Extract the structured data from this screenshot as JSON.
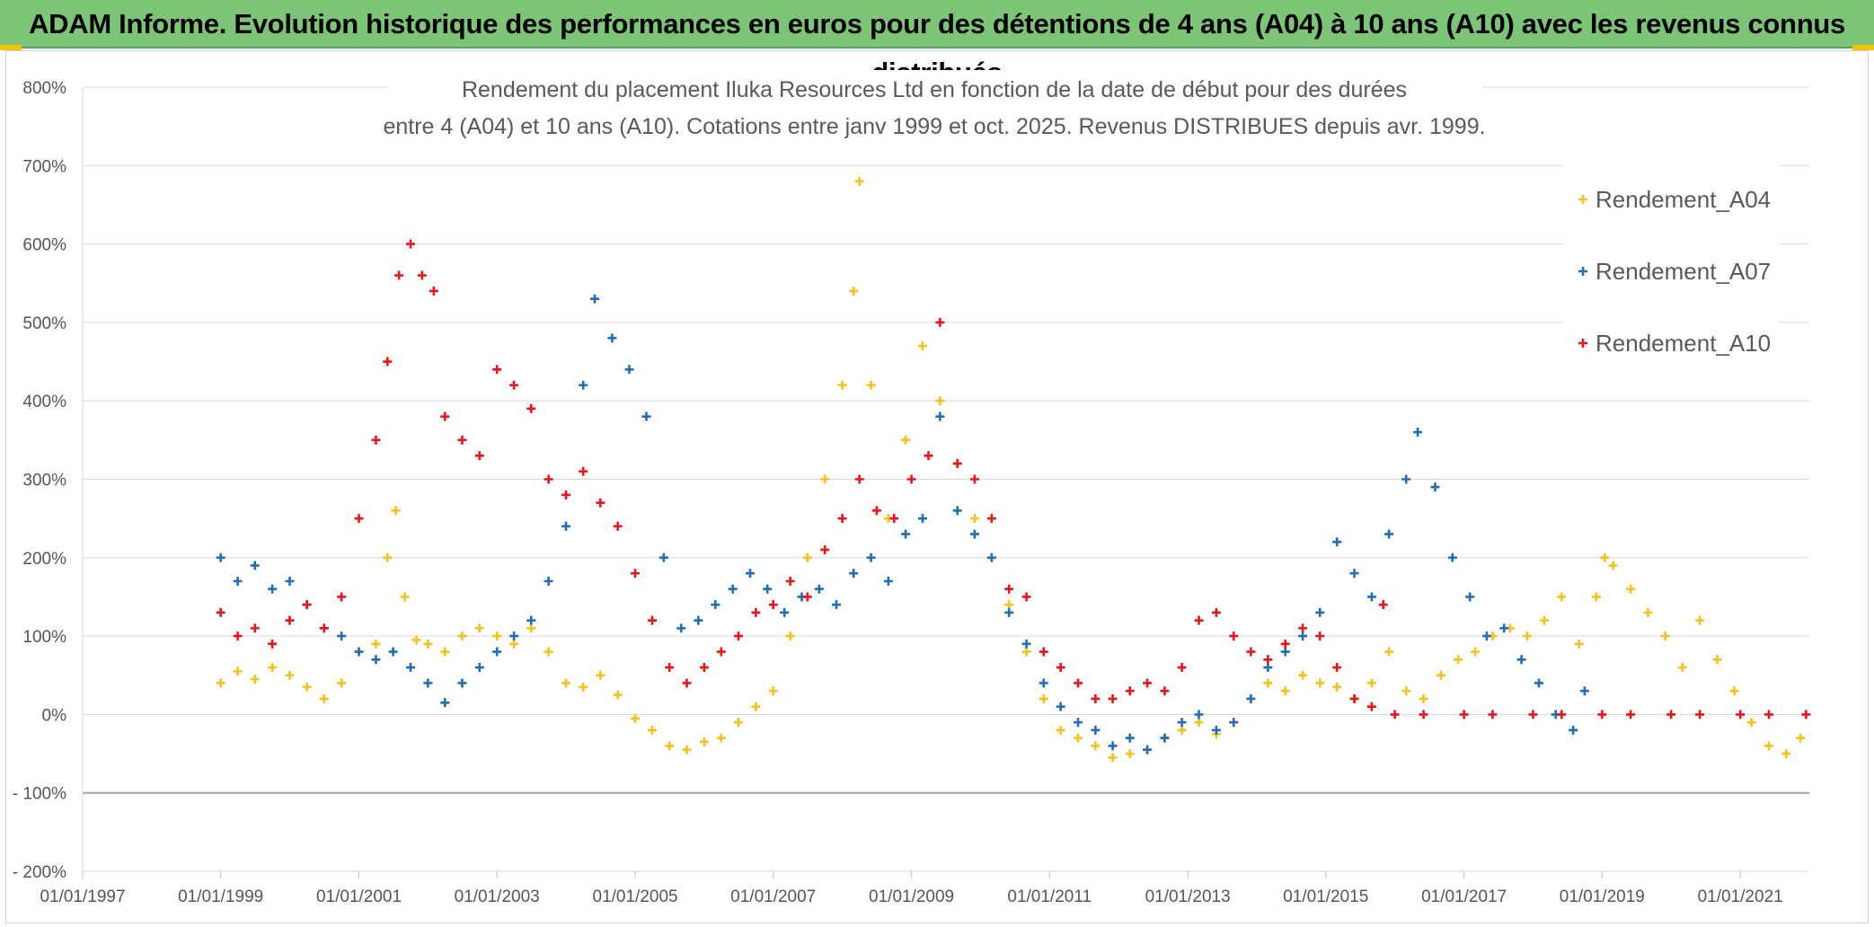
{
  "banner": {
    "title": "ADAM Informe. Evolution historique des performances en euros pour des détentions de 4 ans (A04) à 10 ans (A10) avec les revenus connus distribués"
  },
  "chart_data": {
    "type": "scatter",
    "title_line1": "Rendement du placement Iluka Resources Ltd en fonction de la date de début pour des durées",
    "title_line2": "entre 4 (A04) et 10 ans (A10). Cotations entre janv 1999 et oct. 2025. Revenus DISTRIBUES depuis avr. 1999.",
    "xlabel": "",
    "ylabel": "",
    "x_axis": {
      "min": "1997-01-01",
      "max": "2022-01-01",
      "tick_labels": [
        "01/01/1997",
        "01/01/1999",
        "01/01/2001",
        "01/01/2003",
        "01/01/2005",
        "01/01/2007",
        "01/01/2009",
        "01/01/2011",
        "01/01/2013",
        "01/01/2015",
        "01/01/2017",
        "01/01/2019",
        "01/01/2021"
      ]
    },
    "y_axis": {
      "min": -200,
      "max": 800,
      "unit": "%",
      "tick_labels": [
        "800%",
        "700%",
        "600%",
        "500%",
        "400%",
        "300%",
        "200%",
        "100%",
        "0%",
        "- 100%",
        "- 200%"
      ]
    },
    "grid": "horizontal",
    "legend_position": "top-right",
    "series": [
      {
        "name": "Rendement_A04",
        "color": "#f5c11d",
        "points": [
          [
            "1999-01-01",
            40
          ],
          [
            "1999-04-01",
            55
          ],
          [
            "1999-07-01",
            45
          ],
          [
            "1999-10-01",
            60
          ],
          [
            "2000-01-01",
            50
          ],
          [
            "2000-04-01",
            35
          ],
          [
            "2000-07-01",
            20
          ],
          [
            "2000-10-01",
            40
          ],
          [
            "2001-01-01",
            80
          ],
          [
            "2001-04-01",
            90
          ],
          [
            "2001-06-01",
            200
          ],
          [
            "2001-07-15",
            260
          ],
          [
            "2001-09-01",
            150
          ],
          [
            "2001-11-01",
            95
          ],
          [
            "2002-01-01",
            90
          ],
          [
            "2002-04-01",
            80
          ],
          [
            "2002-07-01",
            100
          ],
          [
            "2002-10-01",
            110
          ],
          [
            "2003-01-01",
            100
          ],
          [
            "2003-04-01",
            90
          ],
          [
            "2003-07-01",
            110
          ],
          [
            "2003-10-01",
            80
          ],
          [
            "2004-01-01",
            40
          ],
          [
            "2004-04-01",
            35
          ],
          [
            "2004-07-01",
            50
          ],
          [
            "2004-10-01",
            25
          ],
          [
            "2005-01-01",
            -5
          ],
          [
            "2005-04-01",
            -20
          ],
          [
            "2005-07-01",
            -40
          ],
          [
            "2005-10-01",
            -45
          ],
          [
            "2006-01-01",
            -35
          ],
          [
            "2006-04-01",
            -30
          ],
          [
            "2006-07-01",
            -10
          ],
          [
            "2006-10-01",
            10
          ],
          [
            "2007-01-01",
            30
          ],
          [
            "2007-04-01",
            100
          ],
          [
            "2007-07-01",
            200
          ],
          [
            "2007-10-01",
            300
          ],
          [
            "2008-01-01",
            420
          ],
          [
            "2008-03-01",
            540
          ],
          [
            "2008-04-01",
            680
          ],
          [
            "2008-06-01",
            420
          ],
          [
            "2008-09-01",
            250
          ],
          [
            "2008-12-01",
            350
          ],
          [
            "2009-03-01",
            470
          ],
          [
            "2009-06-01",
            400
          ],
          [
            "2009-09-01",
            320
          ],
          [
            "2009-12-01",
            250
          ],
          [
            "2010-03-01",
            200
          ],
          [
            "2010-06-01",
            140
          ],
          [
            "2010-09-01",
            80
          ],
          [
            "2010-12-01",
            20
          ],
          [
            "2011-03-01",
            -20
          ],
          [
            "2011-06-01",
            -30
          ],
          [
            "2011-09-01",
            -40
          ],
          [
            "2011-12-01",
            -55
          ],
          [
            "2012-03-01",
            -50
          ],
          [
            "2012-06-01",
            -45
          ],
          [
            "2012-09-01",
            -30
          ],
          [
            "2012-12-01",
            -20
          ],
          [
            "2013-03-01",
            -10
          ],
          [
            "2013-06-01",
            -25
          ],
          [
            "2013-09-01",
            -10
          ],
          [
            "2013-12-01",
            20
          ],
          [
            "2014-03-01",
            40
          ],
          [
            "2014-06-01",
            30
          ],
          [
            "2014-09-01",
            50
          ],
          [
            "2014-12-01",
            40
          ],
          [
            "2015-03-01",
            35
          ],
          [
            "2015-06-01",
            20
          ],
          [
            "2015-09-01",
            40
          ],
          [
            "2015-12-01",
            80
          ],
          [
            "2016-03-01",
            30
          ],
          [
            "2016-06-01",
            20
          ],
          [
            "2016-09-01",
            50
          ],
          [
            "2016-12-01",
            70
          ],
          [
            "2017-03-01",
            80
          ],
          [
            "2017-06-01",
            100
          ],
          [
            "2017-09-01",
            110
          ],
          [
            "2017-12-01",
            100
          ],
          [
            "2018-03-01",
            120
          ],
          [
            "2018-06-01",
            150
          ],
          [
            "2018-09-01",
            90
          ],
          [
            "2018-12-01",
            150
          ],
          [
            "2019-01-15",
            200
          ],
          [
            "2019-03-01",
            190
          ],
          [
            "2019-06-01",
            160
          ],
          [
            "2019-09-01",
            130
          ],
          [
            "2019-12-01",
            100
          ],
          [
            "2020-03-01",
            60
          ],
          [
            "2020-06-01",
            120
          ],
          [
            "2020-09-01",
            70
          ],
          [
            "2020-12-01",
            30
          ],
          [
            "2021-03-01",
            -10
          ],
          [
            "2021-06-01",
            -40
          ],
          [
            "2021-09-01",
            -50
          ],
          [
            "2021-11-15",
            -30
          ]
        ]
      },
      {
        "name": "Rendement_A07",
        "color": "#1e6eb8",
        "points": [
          [
            "1999-01-01",
            200
          ],
          [
            "1999-04-01",
            170
          ],
          [
            "1999-07-01",
            190
          ],
          [
            "1999-10-01",
            160
          ],
          [
            "2000-01-01",
            170
          ],
          [
            "2000-04-01",
            140
          ],
          [
            "2000-07-01",
            110
          ],
          [
            "2000-10-01",
            100
          ],
          [
            "2001-01-01",
            80
          ],
          [
            "2001-04-01",
            70
          ],
          [
            "2001-07-01",
            80
          ],
          [
            "2001-10-01",
            60
          ],
          [
            "2002-01-01",
            40
          ],
          [
            "2002-04-01",
            15
          ],
          [
            "2002-07-01",
            40
          ],
          [
            "2002-10-01",
            60
          ],
          [
            "2003-01-01",
            80
          ],
          [
            "2003-04-01",
            100
          ],
          [
            "2003-07-01",
            120
          ],
          [
            "2003-10-01",
            170
          ],
          [
            "2004-01-01",
            240
          ],
          [
            "2004-04-01",
            420
          ],
          [
            "2004-06-01",
            530
          ],
          [
            "2004-09-01",
            480
          ],
          [
            "2004-12-01",
            440
          ],
          [
            "2005-03-01",
            380
          ],
          [
            "2005-06-01",
            200
          ],
          [
            "2005-09-01",
            110
          ],
          [
            "2005-12-01",
            120
          ],
          [
            "2006-03-01",
            140
          ],
          [
            "2006-06-01",
            160
          ],
          [
            "2006-09-01",
            180
          ],
          [
            "2006-12-01",
            160
          ],
          [
            "2007-03-01",
            130
          ],
          [
            "2007-06-01",
            150
          ],
          [
            "2007-09-01",
            160
          ],
          [
            "2007-12-01",
            140
          ],
          [
            "2008-03-01",
            180
          ],
          [
            "2008-06-01",
            200
          ],
          [
            "2008-09-01",
            170
          ],
          [
            "2008-12-01",
            230
          ],
          [
            "2009-03-01",
            250
          ],
          [
            "2009-06-01",
            380
          ],
          [
            "2009-09-01",
            260
          ],
          [
            "2009-12-01",
            230
          ],
          [
            "2010-03-01",
            200
          ],
          [
            "2010-06-01",
            130
          ],
          [
            "2010-09-01",
            90
          ],
          [
            "2010-12-01",
            40
          ],
          [
            "2011-03-01",
            10
          ],
          [
            "2011-06-01",
            -10
          ],
          [
            "2011-09-01",
            -20
          ],
          [
            "2011-12-01",
            -40
          ],
          [
            "2012-03-01",
            -30
          ],
          [
            "2012-06-01",
            -45
          ],
          [
            "2012-09-01",
            -30
          ],
          [
            "2012-12-01",
            -10
          ],
          [
            "2013-03-01",
            0
          ],
          [
            "2013-06-01",
            -20
          ],
          [
            "2013-09-01",
            -10
          ],
          [
            "2013-12-01",
            20
          ],
          [
            "2014-03-01",
            60
          ],
          [
            "2014-06-01",
            80
          ],
          [
            "2014-09-01",
            100
          ],
          [
            "2014-12-01",
            130
          ],
          [
            "2015-03-01",
            220
          ],
          [
            "2015-06-01",
            180
          ],
          [
            "2015-09-01",
            150
          ],
          [
            "2015-12-01",
            230
          ],
          [
            "2016-03-01",
            300
          ],
          [
            "2016-05-01",
            360
          ],
          [
            "2016-08-01",
            290
          ],
          [
            "2016-11-01",
            200
          ],
          [
            "2017-02-01",
            150
          ],
          [
            "2017-05-01",
            100
          ],
          [
            "2017-08-01",
            110
          ],
          [
            "2017-11-01",
            70
          ],
          [
            "2018-02-01",
            40
          ],
          [
            "2018-05-01",
            0
          ],
          [
            "2018-08-01",
            -20
          ],
          [
            "2018-10-01",
            30
          ]
        ]
      },
      {
        "name": "Rendement_A10",
        "color": "#e8151b",
        "points": [
          [
            "1999-01-01",
            130
          ],
          [
            "1999-04-01",
            100
          ],
          [
            "1999-07-01",
            110
          ],
          [
            "1999-10-01",
            90
          ],
          [
            "2000-01-01",
            120
          ],
          [
            "2000-04-01",
            140
          ],
          [
            "2000-07-01",
            110
          ],
          [
            "2000-10-01",
            150
          ],
          [
            "2001-01-01",
            250
          ],
          [
            "2001-04-01",
            350
          ],
          [
            "2001-06-01",
            450
          ],
          [
            "2001-08-01",
            560
          ],
          [
            "2001-10-01",
            600
          ],
          [
            "2001-12-01",
            560
          ],
          [
            "2002-02-01",
            540
          ],
          [
            "2002-04-01",
            380
          ],
          [
            "2002-07-01",
            350
          ],
          [
            "2002-10-01",
            330
          ],
          [
            "2003-01-01",
            440
          ],
          [
            "2003-04-01",
            420
          ],
          [
            "2003-07-01",
            390
          ],
          [
            "2003-10-01",
            300
          ],
          [
            "2004-01-01",
            280
          ],
          [
            "2004-04-01",
            310
          ],
          [
            "2004-07-01",
            270
          ],
          [
            "2004-10-01",
            240
          ],
          [
            "2005-01-01",
            180
          ],
          [
            "2005-04-01",
            120
          ],
          [
            "2005-07-01",
            60
          ],
          [
            "2005-10-01",
            40
          ],
          [
            "2006-01-01",
            60
          ],
          [
            "2006-04-01",
            80
          ],
          [
            "2006-07-01",
            100
          ],
          [
            "2006-10-01",
            130
          ],
          [
            "2007-01-01",
            140
          ],
          [
            "2007-04-01",
            170
          ],
          [
            "2007-07-01",
            150
          ],
          [
            "2007-10-01",
            210
          ],
          [
            "2008-01-01",
            250
          ],
          [
            "2008-04-01",
            300
          ],
          [
            "2008-07-01",
            260
          ],
          [
            "2008-10-01",
            250
          ],
          [
            "2009-01-01",
            300
          ],
          [
            "2009-04-01",
            330
          ],
          [
            "2009-06-01",
            500
          ],
          [
            "2009-09-01",
            320
          ],
          [
            "2009-12-01",
            300
          ],
          [
            "2010-03-01",
            250
          ],
          [
            "2010-06-01",
            160
          ],
          [
            "2010-09-01",
            150
          ],
          [
            "2010-12-01",
            80
          ],
          [
            "2011-03-01",
            60
          ],
          [
            "2011-06-01",
            40
          ],
          [
            "2011-09-01",
            20
          ],
          [
            "2011-12-01",
            20
          ],
          [
            "2012-03-01",
            30
          ],
          [
            "2012-06-01",
            40
          ],
          [
            "2012-09-01",
            30
          ],
          [
            "2012-12-01",
            60
          ],
          [
            "2013-03-01",
            120
          ],
          [
            "2013-06-01",
            130
          ],
          [
            "2013-09-01",
            100
          ],
          [
            "2013-12-01",
            80
          ],
          [
            "2014-03-01",
            70
          ],
          [
            "2014-06-01",
            90
          ],
          [
            "2014-09-01",
            110
          ],
          [
            "2014-12-01",
            100
          ],
          [
            "2015-03-01",
            60
          ],
          [
            "2015-06-01",
            20
          ],
          [
            "2015-09-01",
            10
          ],
          [
            "2015-11-01",
            140
          ],
          [
            "2016-01-01",
            0
          ],
          [
            "2016-06-01",
            0
          ],
          [
            "2017-01-01",
            0
          ],
          [
            "2017-06-01",
            0
          ],
          [
            "2018-01-01",
            0
          ],
          [
            "2018-06-01",
            0
          ],
          [
            "2019-01-01",
            0
          ],
          [
            "2019-06-01",
            0
          ],
          [
            "2020-01-01",
            0
          ],
          [
            "2020-06-01",
            0
          ],
          [
            "2021-01-01",
            0
          ],
          [
            "2021-06-01",
            0
          ],
          [
            "2021-12-15",
            0
          ]
        ]
      }
    ]
  }
}
